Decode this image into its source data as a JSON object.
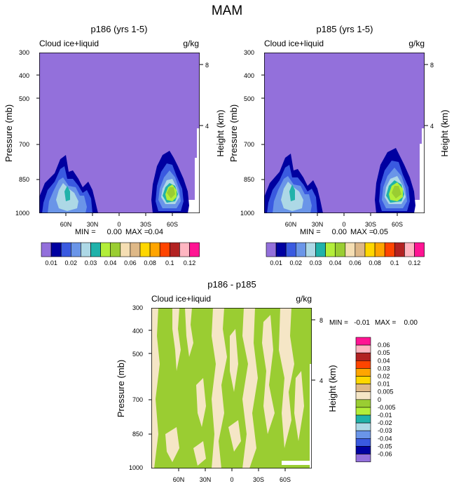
{
  "title": "MAM",
  "colors": {
    "purple": "#9370DB",
    "white": "#FFFFFF",
    "darkblue": "#0000A0",
    "royal": "#3A5AE0",
    "cornflower": "#6A95E8",
    "lightblue": "#ADD8E6",
    "teal": "#20B2AA",
    "lightgreen": "#B3EE3A",
    "yellowgreen": "#9ACD32",
    "wheat": "#F5DEB3",
    "tan": "#DEB887",
    "gold": "#FFD700",
    "orange": "#FFA500",
    "orangered": "#FF4500",
    "firebrick": "#B22222",
    "pink": "#FFB6C1",
    "deeppink": "#FF1493",
    "diff_green": "#9ACD32",
    "diff_beige": "#F5E6C6"
  },
  "chart_data": [
    {
      "type": "contour",
      "title": "p186 (yrs 1-5)",
      "left_label": "Cloud ice+liquid",
      "right_label": "g/kg",
      "ylabel": "Pressure (mb)",
      "y2label": "Height (km)",
      "yticks": [
        "300",
        "400",
        "500",
        "700",
        "850",
        "1000"
      ],
      "y2ticks": [
        "8",
        "4"
      ],
      "xticks": [
        "60N",
        "30N",
        "0",
        "30S",
        "60S"
      ],
      "min_label": "MIN =",
      "min": "0.00",
      "max_label": "MAX =",
      "max": "0.04",
      "maxima": [
        {
          "region": "NH midlatitudes",
          "lat": "~50N",
          "pressure": 900,
          "value": 0.03
        },
        {
          "region": "SH midlatitudes",
          "lat": "~60S",
          "pressure": 880,
          "value": 0.04
        }
      ],
      "colorbar_labels": [
        "0.01",
        "0.02",
        "0.03",
        "0.04",
        "0.06",
        "0.08",
        "0.1",
        "0.12"
      ],
      "colorbar_colors": [
        "#9370DB",
        "#0000A0",
        "#3A5AE0",
        "#6A95E8",
        "#ADD8E6",
        "#20B2AA",
        "#B3EE3A",
        "#9ACD32",
        "#F5DEB3",
        "#DEB887",
        "#FFD700",
        "#FFA500",
        "#FF4500",
        "#B22222",
        "#FFB6C1",
        "#FF1493"
      ]
    },
    {
      "type": "contour",
      "title": "p185 (yrs 1-5)",
      "left_label": "Cloud ice+liquid",
      "right_label": "g/kg",
      "ylabel": "Pressure (mb)",
      "y2label": "Height (km)",
      "yticks": [
        "300",
        "400",
        "500",
        "700",
        "850",
        "1000"
      ],
      "y2ticks": [
        "8",
        "4"
      ],
      "xticks": [
        "60N",
        "30N",
        "0",
        "30S",
        "60S"
      ],
      "min_label": "MIN =",
      "min": "0.00",
      "max_label": "MAX =",
      "max": "0.05",
      "maxima": [
        {
          "region": "NH midlatitudes",
          "lat": "~50N",
          "pressure": 900,
          "value": 0.03
        },
        {
          "region": "SH midlatitudes",
          "lat": "~60S",
          "pressure": 880,
          "value": 0.05
        }
      ],
      "colorbar_labels": [
        "0.01",
        "0.02",
        "0.03",
        "0.04",
        "0.06",
        "0.08",
        "0.1",
        "0.12"
      ],
      "colorbar_colors": [
        "#9370DB",
        "#0000A0",
        "#3A5AE0",
        "#6A95E8",
        "#ADD8E6",
        "#20B2AA",
        "#B3EE3A",
        "#9ACD32",
        "#F5DEB3",
        "#DEB887",
        "#FFD700",
        "#FFA500",
        "#FF4500",
        "#B22222",
        "#FFB6C1",
        "#FF1493"
      ]
    },
    {
      "type": "contour",
      "title": "p186 - p185",
      "left_label": "Cloud ice+liquid",
      "right_label": "g/kg",
      "ylabel": "Pressure (mb)",
      "y2label": "Height (km)",
      "yticks": [
        "300",
        "400",
        "500",
        "700",
        "850",
        "1000"
      ],
      "y2ticks": [
        "8",
        "4"
      ],
      "xticks": [
        "60N",
        "30N",
        "0",
        "30S",
        "60S"
      ],
      "min_label": "MIN =",
      "min": "-0.01",
      "max_label": "MAX =",
      "max": "0.00",
      "colorbar_labels": [
        "0.06",
        "0.05",
        "0.04",
        "0.03",
        "0.02",
        "0.01",
        "0.005",
        "0",
        "-0.005",
        "-0.01",
        "-0.02",
        "-0.03",
        "-0.04",
        "-0.05",
        "-0.06"
      ],
      "colorbar_colors": [
        "#FF1493",
        "#FFB6C1",
        "#B22222",
        "#FF4500",
        "#FFA500",
        "#FFD700",
        "#DEB887",
        "#F5E6C6",
        "#9ACD32",
        "#B3EE3A",
        "#20B2AA",
        "#ADD8E6",
        "#6A95E8",
        "#3A5AE0",
        "#0000A0",
        "#9370DB"
      ]
    }
  ]
}
